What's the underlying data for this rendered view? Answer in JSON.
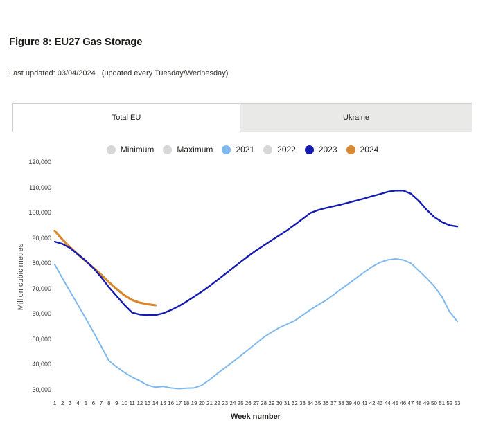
{
  "page": {
    "title": "Figure 8: EU27 Gas Storage",
    "last_updated": "Last updated: 03/04/2024",
    "update_note": "(updated every Tuesday/Wednesday)"
  },
  "tabs": {
    "items": [
      {
        "label": "Total EU",
        "active": true
      },
      {
        "label": "Ukraine",
        "active": false
      }
    ]
  },
  "chart_data": {
    "type": "line",
    "title": "",
    "xlabel": "Week number",
    "ylabel": "Million cubic metres",
    "x": [
      1,
      2,
      3,
      4,
      5,
      6,
      7,
      8,
      9,
      10,
      11,
      12,
      13,
      14,
      15,
      16,
      17,
      18,
      19,
      20,
      21,
      22,
      23,
      24,
      25,
      26,
      27,
      28,
      29,
      30,
      31,
      32,
      33,
      34,
      35,
      36,
      37,
      38,
      39,
      40,
      41,
      42,
      43,
      44,
      45,
      46,
      47,
      48,
      49,
      50,
      51,
      52,
      53
    ],
    "ylim": [
      30000,
      120000
    ],
    "ytick_labels": [
      "120,000",
      "110,000",
      "100,000",
      "90,000",
      "80,000",
      "70,000",
      "60,000",
      "50,000",
      "40,000",
      "30,000"
    ],
    "grid": false,
    "legend_position": "top",
    "legend": [
      {
        "label": "Minimum",
        "color": "#d7d7d7",
        "visible": false
      },
      {
        "label": "Maximum",
        "color": "#d7d7d7",
        "visible": false
      },
      {
        "label": "2021",
        "color": "#7fb8ec",
        "visible": true
      },
      {
        "label": "2022",
        "color": "#d7d7d7",
        "visible": false
      },
      {
        "label": "2023",
        "color": "#141bb0",
        "visible": true
      },
      {
        "label": "2024",
        "color": "#d8882e",
        "visible": true
      }
    ],
    "series": [
      {
        "name": "2021",
        "color": "#7fb8ec",
        "line_width": 2,
        "start_week": 1,
        "values": [
          79500,
          74000,
          68800,
          63500,
          58200,
          52800,
          47200,
          41500,
          39000,
          36800,
          35000,
          33500,
          31800,
          31000,
          31300,
          30700,
          30400,
          30600,
          30700,
          31800,
          34000,
          36400,
          38700,
          41000,
          43400,
          45800,
          48300,
          50800,
          52700,
          54500,
          55900,
          57300,
          59400,
          61600,
          63500,
          65300,
          67500,
          69800,
          72000,
          74300,
          76500,
          78600,
          80300,
          81300,
          81700,
          81300,
          80000,
          77200,
          74200,
          71000,
          66800,
          60800,
          57000
        ]
      },
      {
        "name": "2024",
        "color": "#d8882e",
        "line_width": 3.2,
        "start_week": 1,
        "values": [
          92800,
          89300,
          86300,
          83500,
          80800,
          78200,
          75500,
          72500,
          69800,
          67300,
          65500,
          64400,
          63800,
          63400
        ]
      },
      {
        "name": "2023",
        "color": "#141bb0",
        "line_width": 2.4,
        "start_week": 1,
        "values": [
          88500,
          87600,
          86000,
          83500,
          81000,
          78000,
          74500,
          70500,
          67000,
          63500,
          60500,
          59700,
          59500,
          59500,
          60200,
          61500,
          63000,
          64800,
          66800,
          68800,
          71000,
          73300,
          75700,
          78100,
          80500,
          82800,
          85000,
          87000,
          89000,
          91000,
          93000,
          95200,
          97500,
          99800,
          101000,
          101800,
          102500,
          103200,
          104000,
          104800,
          105600,
          106500,
          107300,
          108200,
          108700,
          108700,
          107500,
          104800,
          101300,
          98300,
          96300,
          95000,
          94500
        ]
      }
    ]
  }
}
